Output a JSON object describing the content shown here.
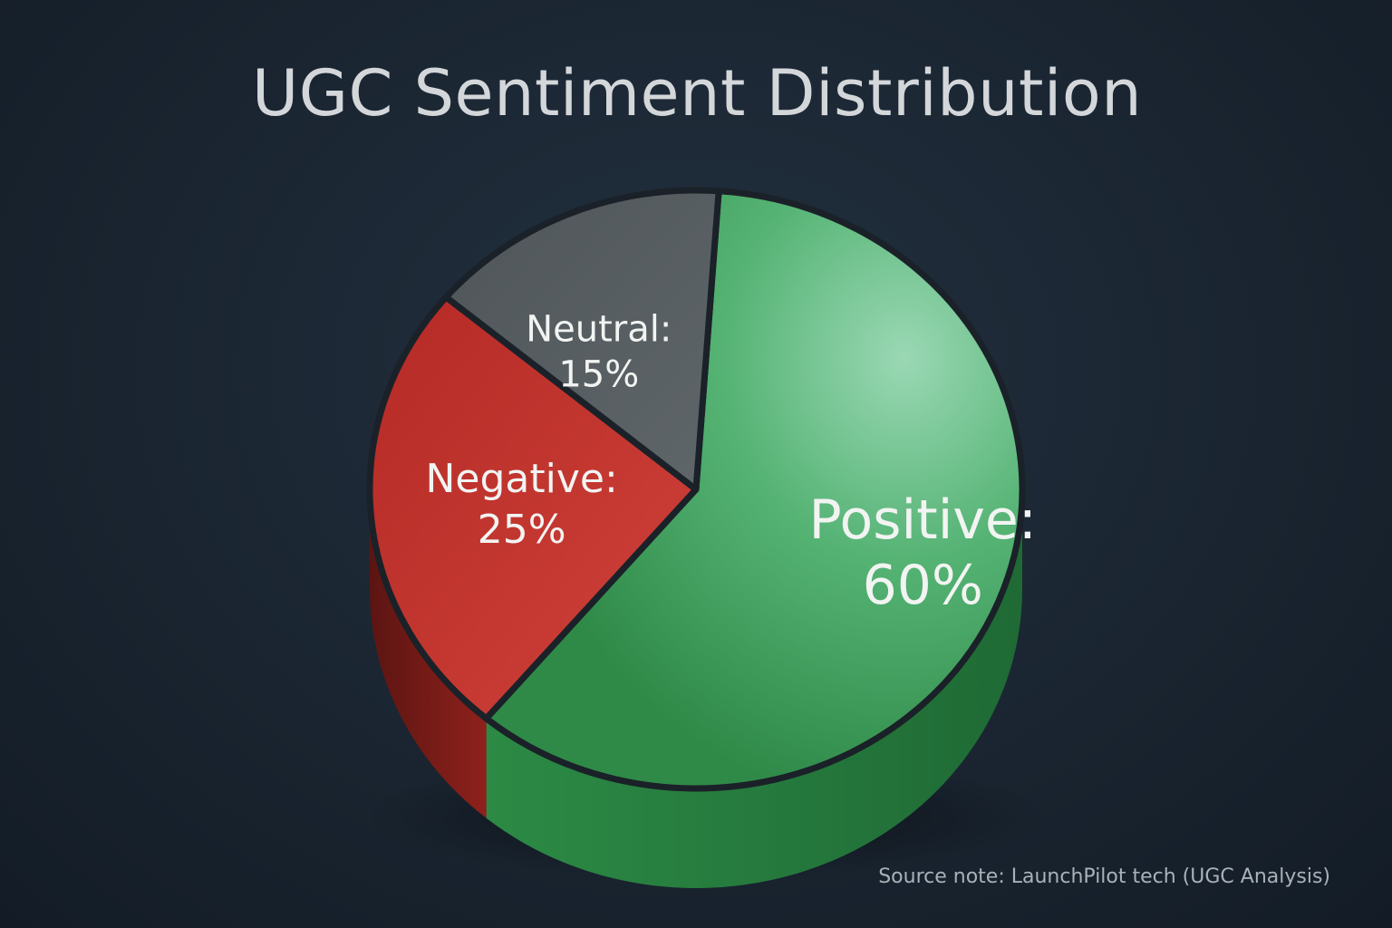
{
  "chart_data": {
    "type": "pie",
    "title": "UGC Sentiment Distribution",
    "slices": [
      {
        "name": "Positive",
        "value": 60,
        "label": "Positive:",
        "value_label": "60%",
        "color": "#3d9a57"
      },
      {
        "name": "Negative",
        "value": 25,
        "label": "Negative:",
        "value_label": "25%",
        "color": "#c0332e"
      },
      {
        "name": "Neutral",
        "value": 15,
        "label": "Neutral:",
        "value_label": "15%",
        "color": "#565c60"
      }
    ],
    "style": "3d",
    "source_note": "Source note: LaunchPilot tech (UGC Analysis)"
  }
}
